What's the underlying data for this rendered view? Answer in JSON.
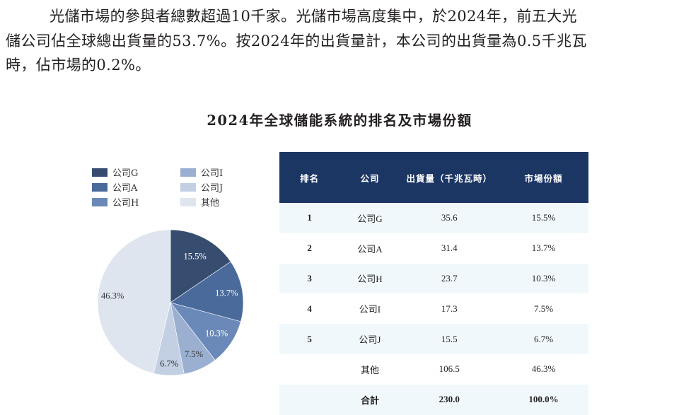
{
  "paragraph": {
    "lines": [
      "光儲市場的參與者總數超過10千家。光儲市場高度集中，於2024年，前五大光",
      "儲公司佔全球總出貨量的53.7%。按2024年的出貨量計，本公司的出貨量為0.5千兆瓦",
      "時，佔市場的0.2%。"
    ]
  },
  "chart_title": "2024年全球儲能系統的排名及市場份額",
  "legend": [
    {
      "label": "公司G",
      "color": "#374d6f"
    },
    {
      "label": "公司A",
      "color": "#4a6a9c"
    },
    {
      "label": "公司H",
      "color": "#6b89b8"
    },
    {
      "label": "公司I",
      "color": "#9bb0d0"
    },
    {
      "label": "公司J",
      "color": "#c3cfe2"
    },
    {
      "label": "其他",
      "color": "#dfe5ef"
    }
  ],
  "table": {
    "headers": [
      "排名",
      "公司",
      "出貨量（千兆瓦時）",
      "市場份額"
    ],
    "rows": [
      {
        "rank": "1",
        "company": "公司G",
        "shipment": "35.6",
        "share": "15.5%"
      },
      {
        "rank": "2",
        "company": "公司A",
        "shipment": "31.4",
        "share": "13.7%"
      },
      {
        "rank": "3",
        "company": "公司H",
        "shipment": "23.7",
        "share": "10.3%"
      },
      {
        "rank": "4",
        "company": "公司I",
        "shipment": "17.3",
        "share": "7.5%"
      },
      {
        "rank": "5",
        "company": "公司J",
        "shipment": "15.5",
        "share": "6.7%"
      },
      {
        "rank": "",
        "company": "其他",
        "shipment": "106.5",
        "share": "46.3%"
      }
    ],
    "total": {
      "rank": "",
      "company": "合計",
      "shipment": "230.0",
      "share": "100.0%"
    }
  },
  "colors": {
    "header_bg": "#1c3664",
    "row_alt_bg": "#f1f8fb"
  },
  "chart_data": {
    "type": "pie",
    "title": "2024年全球儲能系統的排名及市場份額",
    "categories": [
      "公司G",
      "公司A",
      "公司H",
      "公司I",
      "公司J",
      "其他"
    ],
    "values": [
      15.5,
      13.7,
      10.3,
      7.5,
      6.7,
      46.3
    ],
    "labels": [
      "15.5%",
      "13.7%",
      "10.3%",
      "7.5%",
      "6.7%",
      "46.3%"
    ],
    "colors": [
      "#374d6f",
      "#4a6a9c",
      "#6b89b8",
      "#9bb0d0",
      "#c3cfe2",
      "#dfe5ef"
    ],
    "start_angle": "12 o'clock",
    "direction": "clockwise",
    "legend_position": "top-left",
    "unit": "%"
  }
}
